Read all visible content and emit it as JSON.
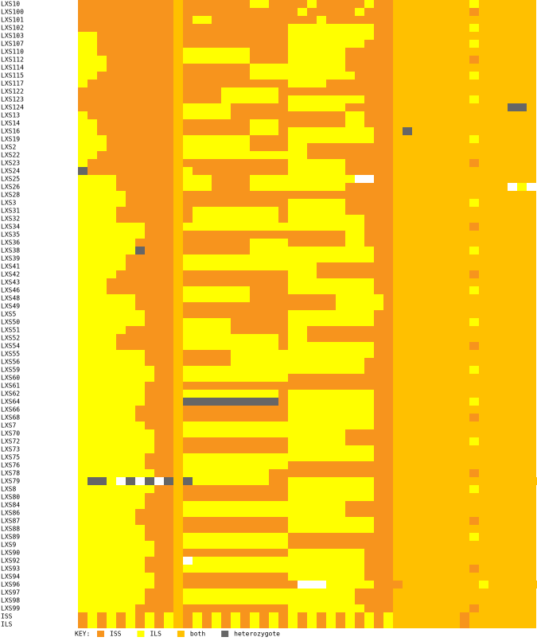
{
  "legend": {
    "title": "KEY:",
    "items": [
      {
        "label": "ISS",
        "color": "#f7941d"
      },
      {
        "label": "ILS",
        "color": "#ffff00"
      },
      {
        "label": "both",
        "color": "#ffc000"
      },
      {
        "label": "heterozygote",
        "color": "#666666"
      }
    ]
  },
  "missing_color": "#ffffff",
  "rows": [
    {
      "name": "LXS10",
      "genotypes": "000000000020000000110000100000100222222221222222"
    },
    {
      "name": "LXS100",
      "genotypes": "000000000020000000000001000001000222222220222222"
    },
    {
      "name": "LXS101",
      "genotypes": "000000000020110000000000010000000222222222222222"
    },
    {
      "name": "LXS102",
      "genotypes": "000000000020000000000011111111100222222221222222"
    },
    {
      "name": "LXS103",
      "genotypes": "110000000020000000000011111111100222222222222222"
    },
    {
      "name": "LXS107",
      "genotypes": "110000000020000000000011111111000222222221222222"
    },
    {
      "name": "LXS110",
      "genotypes": "110000000021111111000011111100000222222222222222"
    },
    {
      "name": "LXS112",
      "genotypes": "111000000021111111000011111100000222222220222222"
    },
    {
      "name": "LXS114",
      "genotypes": "111000000020000000111111111100000222222222222222"
    },
    {
      "name": "LXS115",
      "genotypes": "110000000020000000111111111110000222222221222222"
    },
    {
      "name": "LXS117",
      "genotypes": "100000000020000000000011110000000222222222222222"
    },
    {
      "name": "LXS122",
      "genotypes": "000000000020000111111000000000000222222222222222"
    },
    {
      "name": "LXS123",
      "genotypes": "000000000020000111111011111111000222222221222222"
    },
    {
      "name": "LXS124",
      "genotypes": "000000000021111100000011111100000222222222222332"
    },
    {
      "name": "LXS13",
      "genotypes": "100000000021111100000000000011000222222222222222"
    },
    {
      "name": "LXS14",
      "genotypes": "110000000020000000111000000011000222222222222222"
    },
    {
      "name": "LXS16",
      "genotypes": "110000000020000000111011111111100232222222222222"
    },
    {
      "name": "LXS19",
      "genotypes": "111000000021111111000011111111100222222221222222"
    },
    {
      "name": "LXS2",
      "genotypes": "111000000021111111000011000000000222222222222222"
    },
    {
      "name": "LXS22",
      "genotypes": "110000000021111111111111000000000222222222222222"
    },
    {
      "name": "LXS23",
      "genotypes": "100000000020000000000011111100000222222220222222"
    },
    {
      "name": "LXS24",
      "genotypes": "300000000021000000000011111100000222222222222222"
    },
    {
      "name": "LXS25",
      "genotypes": "11110000002111000011111111111--00222222222222222"
    },
    {
      "name": "LXS26",
      "genotypes": "111100000021110000111111111100000222222222222-1-"
    },
    {
      "name": "LXS28",
      "genotypes": "111110000020000000000000000000000222222222222222"
    },
    {
      "name": "LXS3",
      "genotypes": "111110000020000000000011111100000222222221222222"
    },
    {
      "name": "LXS31",
      "genotypes": "111100000020111111111011111100000222222222222222"
    },
    {
      "name": "LXS32",
      "genotypes": "111100000020111111111011111111000222222222222222"
    },
    {
      "name": "LXS34",
      "genotypes": "111111100021111111111111111111000222222220222222"
    },
    {
      "name": "LXS35",
      "genotypes": "111111100020000000000000000011000222222222222222"
    },
    {
      "name": "LXS36",
      "genotypes": "111111000020000000111100000011000222222222222222"
    },
    {
      "name": "LXS38",
      "genotypes": "111111300020000000111111111111100222222221222222"
    },
    {
      "name": "LXS39",
      "genotypes": "111110000021111111111111111111100222222222222222"
    },
    {
      "name": "LXS41",
      "genotypes": "111110000021111111111111100000000222222222222222"
    },
    {
      "name": "LXS42",
      "genotypes": "111100000020000000000011100000000222222220222222"
    },
    {
      "name": "LXS43",
      "genotypes": "111000000020000000000011111111100222222222222222"
    },
    {
      "name": "LXS46",
      "genotypes": "111000000021111111000011111111100222222221222222"
    },
    {
      "name": "LXS48",
      "genotypes": "111111000021111111000000000111110222222222222222"
    },
    {
      "name": "LXS49",
      "genotypes": "111111000020000000000000000111110222222222222222"
    },
    {
      "name": "LXS5",
      "genotypes": "111111100020000000000011111111100222222222222222"
    },
    {
      "name": "LXS50",
      "genotypes": "111111100021111100000011111111100222222221222222"
    },
    {
      "name": "LXS51",
      "genotypes": "111110000021111100000011000000000222222222222222"
    },
    {
      "name": "LXS52",
      "genotypes": "111100000021111111111011000000000222222222222222"
    },
    {
      "name": "LXS54",
      "genotypes": "111100000021111111111011111111100222222220222222"
    },
    {
      "name": "LXS55",
      "genotypes": "111111100020000011111111111111100222222222222222"
    },
    {
      "name": "LXS56",
      "genotypes": "111111100020000011111111111111000222222222222222"
    },
    {
      "name": "LXS59",
      "genotypes": "111111110021111111111111111111000222222221222222"
    },
    {
      "name": "LXS60",
      "genotypes": "111111110021111111111100000000000222222222222222"
    },
    {
      "name": "LXS61",
      "genotypes": "111111100020000000000000000000000222222222222222"
    },
    {
      "name": "LXS62",
      "genotypes": "111111100021111111111011111111100222222222222222"
    },
    {
      "name": "LXS64",
      "genotypes": "111111100023333333333011111111100222222221222222"
    },
    {
      "name": "LXS66",
      "genotypes": "111111000020000000000011111111100222222222222222"
    },
    {
      "name": "LXS68",
      "genotypes": "111111000020000000000011111111100222222220222222"
    },
    {
      "name": "LXS7",
      "genotypes": "111111100021111111111111111111100222222222222222"
    },
    {
      "name": "LXS70",
      "genotypes": "111111110021111111111111111100000222222222222222"
    },
    {
      "name": "LXS72",
      "genotypes": "111111110020000000000011111100000222222221222222"
    },
    {
      "name": "LXS73",
      "genotypes": "111111110020000000000011111111100222222222222222"
    },
    {
      "name": "LXS75",
      "genotypes": "111111100021111111111111111111100222222222222222"
    },
    {
      "name": "LXS76",
      "genotypes": "111111100021111111111100000000000222222222222222"
    },
    {
      "name": "LXS78",
      "genotypes": "111111110021111111110000000000000222222220222222"
    },
    {
      "name": "LXS79",
      "genotypes": "1331-3-3-3231111111100111111111002222222222222222"
    },
    {
      "name": "LXS8",
      "genotypes": "111111110020000000000011111111100222222221222222"
    },
    {
      "name": "LXS80",
      "genotypes": "111111100020000000000011111111100222222222222222"
    },
    {
      "name": "LXS84",
      "genotypes": "111111100021111111111111111100000222222222222222"
    },
    {
      "name": "LXS86",
      "genotypes": "111111000021111111111111111100000222222222222222"
    },
    {
      "name": "LXS87",
      "genotypes": "111111000020000000000011111111100222222220222222"
    },
    {
      "name": "LXS88",
      "genotypes": "111111100020000000000011111111100222222222222222"
    },
    {
      "name": "LXS89",
      "genotypes": "111111100021111111111100000000000222222221222222"
    },
    {
      "name": "LXS9",
      "genotypes": "111111110021111111111100000000000222222222222222"
    },
    {
      "name": "LXS90",
      "genotypes": "111111110020000000000011111111000222222222222222"
    },
    {
      "name": "LXS92",
      "genotypes": "11111110002-111111111111111111000222222222222222"
    },
    {
      "name": "LXS93",
      "genotypes": "111111100021111111111111111111000222222220222222"
    },
    {
      "name": "LXS94",
      "genotypes": "111111110020000000000011111111000222222222222222"
    },
    {
      "name": "LXS96",
      "genotypes": "11111111002000000000000---11111000222222221222222"
    },
    {
      "name": "LXS97",
      "genotypes": "111111100021111111111111111110000222222222222222"
    },
    {
      "name": "LXS98",
      "genotypes": "111111100021111111111111111110000222222222222222"
    },
    {
      "name": "LXS99",
      "genotypes": "111111000020000000000011111111000222222220222222"
    },
    {
      "name": "ISS",
      "genotypes": "010101010120101010101010101010101222222202222222"
    },
    {
      "name": "ILS",
      "genotypes": "010101010120101010101010101010101222222202222222"
    }
  ]
}
